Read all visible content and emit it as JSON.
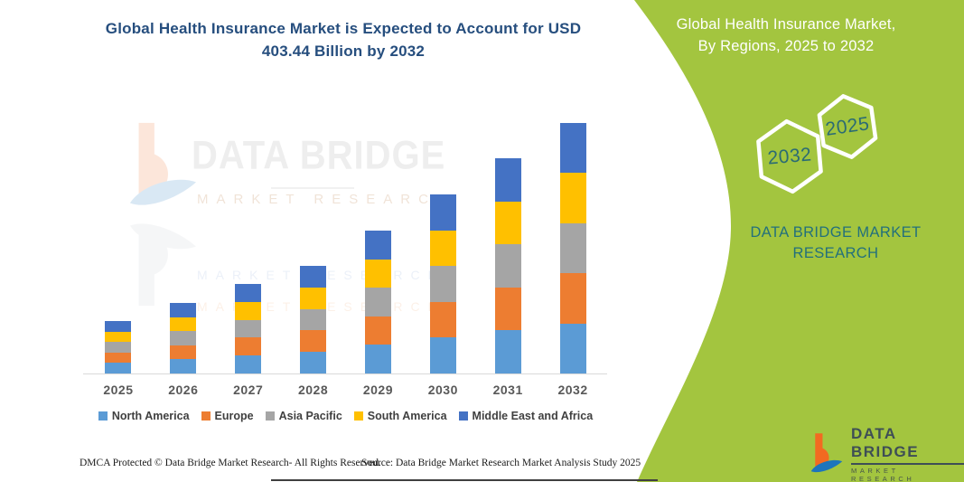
{
  "chart_data": {
    "type": "bar",
    "stacked": true,
    "title": "Global Health Insurance Market is Expected to Account for USD 403.44 Billion by 2032",
    "title_color": "#264E7E",
    "categories": [
      "2025",
      "2026",
      "2027",
      "2028",
      "2029",
      "2030",
      "2031",
      "2032"
    ],
    "series": [
      {
        "name": "North America",
        "color": "#5B9BD5",
        "values": [
          16.9,
          22.7,
          28.8,
          34.7,
          46.0,
          57.7,
          69.3,
          80.69
        ]
      },
      {
        "name": "Europe",
        "color": "#ED7D31",
        "values": [
          16.9,
          22.7,
          28.8,
          34.7,
          46.0,
          57.7,
          69.3,
          80.69
        ]
      },
      {
        "name": "Asia Pacific",
        "color": "#A5A5A5",
        "values": [
          16.9,
          22.7,
          28.8,
          34.7,
          46.0,
          57.7,
          69.3,
          80.69
        ]
      },
      {
        "name": "South America",
        "color": "#FFC000",
        "values": [
          16.9,
          22.7,
          28.8,
          34.7,
          46.0,
          57.7,
          69.3,
          80.69
        ]
      },
      {
        "name": "Middle East and Africa",
        "color": "#4472C4",
        "values": [
          16.9,
          22.7,
          28.8,
          34.7,
          46.0,
          57.7,
          69.3,
          80.69
        ]
      }
    ],
    "totals_estimated": [
      84.5,
      113.5,
      144.0,
      173.5,
      230.0,
      288.5,
      346.5,
      403.44
    ],
    "unit": "USD Billion (totals estimated from bar heights; 2032 anchored at 403.44)",
    "xlabel": "",
    "ylabel": "",
    "ylim": [
      0,
      410
    ],
    "y_axis_visible": false,
    "grid": false,
    "legend_position": "bottom"
  },
  "watermark": {
    "line1": "DATA BRIDGE",
    "line2": "MARKET RESEARCH"
  },
  "side_panel": {
    "panel_color": "#A3C53F",
    "text_teal": "#23707C",
    "title_line1": "Global Health Insurance Market,",
    "title_line2": "By Regions, 2025 to 2032",
    "hexagons": [
      {
        "label": "2032"
      },
      {
        "label": "2025"
      }
    ],
    "brand_line1": "DATA BRIDGE MARKET",
    "brand_line2": "RESEARCH"
  },
  "logo": {
    "brand": "DATA BRIDGE",
    "sub": "MARKET RESEARCH"
  },
  "footer": {
    "left": "DMCA Protected © Data Bridge Market Research-  All Rights Reserved.",
    "right": "Source: Data Bridge Market Research  Market Analysis Study 2025"
  }
}
